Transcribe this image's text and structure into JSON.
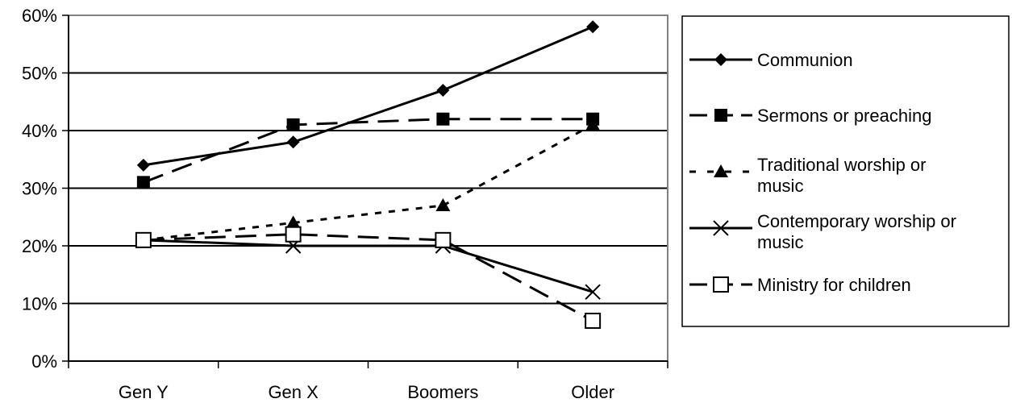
{
  "chart_data": {
    "type": "line",
    "categories": [
      "Gen Y",
      "Gen X",
      "Boomers",
      "Older"
    ],
    "yticks": [
      "0%",
      "10%",
      "20%",
      "30%",
      "40%",
      "50%",
      "60%"
    ],
    "ylim": [
      0,
      60
    ],
    "grid": true,
    "legend_position": "right",
    "series": [
      {
        "name": "Communion",
        "values": [
          34,
          38,
          47,
          58
        ],
        "marker": "diamond",
        "dash": "solid",
        "label_lines": [
          "Communion"
        ]
      },
      {
        "name": "Sermons or preaching",
        "values": [
          31,
          41,
          42,
          42
        ],
        "marker": "square",
        "dash": "long-dash",
        "label_lines": [
          "Sermons or preaching"
        ]
      },
      {
        "name": "Traditional worship or music",
        "values": [
          21,
          24,
          27,
          41
        ],
        "marker": "triangle",
        "dash": "short-dash",
        "label_lines": [
          "Traditional worship or",
          "music"
        ]
      },
      {
        "name": "Contemporary worship or music",
        "values": [
          21,
          20,
          20,
          12
        ],
        "marker": "x",
        "dash": "solid",
        "label_lines": [
          "Contemporary worship or",
          "music"
        ]
      },
      {
        "name": "Ministry for children",
        "values": [
          21,
          22,
          21,
          7
        ],
        "marker": "open-square",
        "dash": "long-dash",
        "label_lines": [
          "Ministry for children"
        ]
      }
    ]
  }
}
